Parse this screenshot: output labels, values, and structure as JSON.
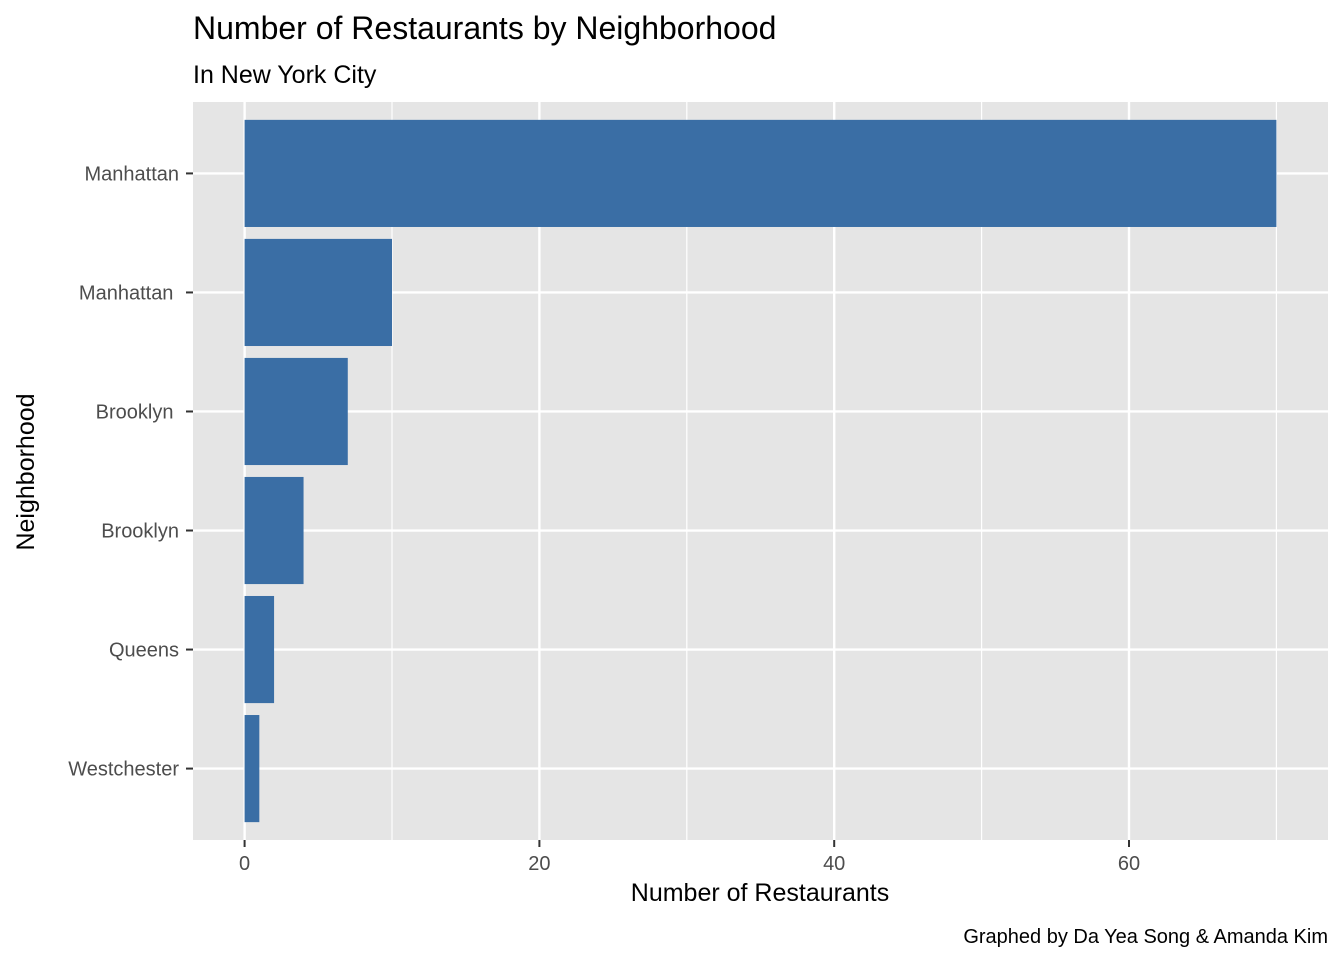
{
  "chart_data": {
    "type": "bar",
    "orientation": "horizontal",
    "title": "Number of Restaurants by Neighborhood",
    "subtitle": "In New York City",
    "xlabel": "Number of Restaurants",
    "ylabel": "Neighborhood",
    "caption": "Graphed by Da Yea Song & Amanda Kim",
    "categories": [
      "Manhattan",
      "Manhattan ",
      "Brooklyn ",
      "Brooklyn",
      "Queens",
      "Westchester"
    ],
    "values": [
      70,
      10,
      7,
      4,
      2,
      1
    ],
    "xlim": [
      -3.5,
      73.5
    ],
    "x_ticks": [
      0,
      20,
      40,
      60
    ],
    "x_minor_ticks": [
      10,
      30,
      50,
      70
    ],
    "grid": true,
    "bar_color": "#3A6EA5",
    "panel_background": "#E5E5E5",
    "grid_color": "#FFFFFF"
  }
}
